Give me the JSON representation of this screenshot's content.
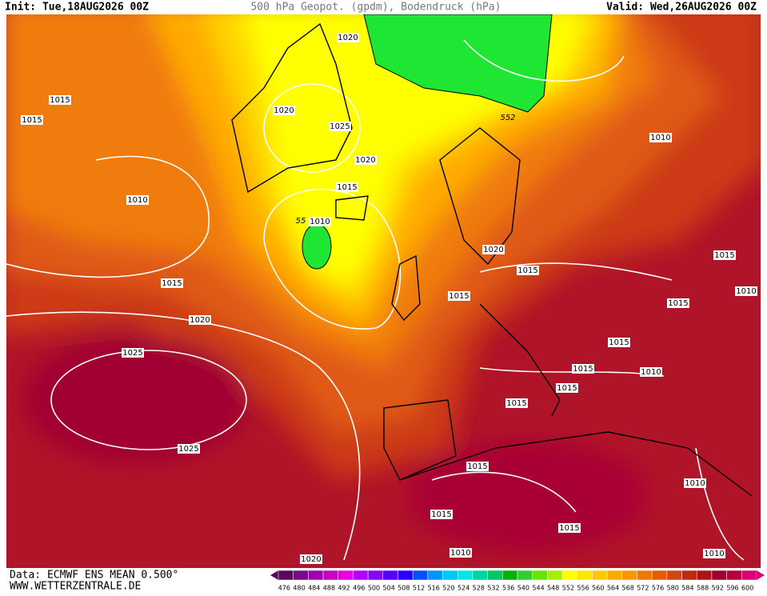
{
  "header": {
    "init": "Init: Tue,18AUG2026 00Z",
    "title": "500 hPa Geopot. (gpdm), Bodendruck (hPa)",
    "valid": "Valid: Wed,26AUG2026 00Z"
  },
  "footer": {
    "source": "Data: ECMWF ENS MEAN 0.500°",
    "site": "WWW.WETTERZENTRALE.DE"
  },
  "map": {
    "labels": [
      "1020",
      "1015",
      "1015",
      "1020",
      "1025",
      "552",
      "1020",
      "1010",
      "1015",
      "1010",
      "55",
      "1010",
      "1020",
      "1015",
      "1015",
      "1010",
      "1015",
      "1015",
      "1015",
      "1020",
      "1015",
      "1025",
      "1015",
      "1010",
      "1015",
      "1015",
      "1025",
      "1015",
      "1010",
      "1015",
      "1015",
      "1020",
      "1010",
      "1010"
    ]
  },
  "colorbar": {
    "values": [
      476,
      480,
      484,
      488,
      492,
      496,
      500,
      504,
      508,
      512,
      516,
      520,
      524,
      528,
      532,
      536,
      540,
      544,
      548,
      552,
      556,
      560,
      564,
      568,
      572,
      576,
      580,
      584,
      588,
      592,
      596,
      600
    ],
    "colors": [
      "#5a0a5a",
      "#7a0a8a",
      "#a000b0",
      "#c800c8",
      "#e600e6",
      "#b400ff",
      "#8c00ff",
      "#5a00ff",
      "#2800ff",
      "#0050ff",
      "#0096ff",
      "#00c8ff",
      "#00e6e6",
      "#00d2a0",
      "#00c864",
      "#00b400",
      "#32cd32",
      "#64e600",
      "#a0f000",
      "#ffff00",
      "#ffe600",
      "#ffc800",
      "#ffaa00",
      "#ff9600",
      "#f07800",
      "#e65a00",
      "#d24614",
      "#be2814",
      "#aa1414",
      "#a00028",
      "#b4003c",
      "#dc0078"
    ]
  }
}
